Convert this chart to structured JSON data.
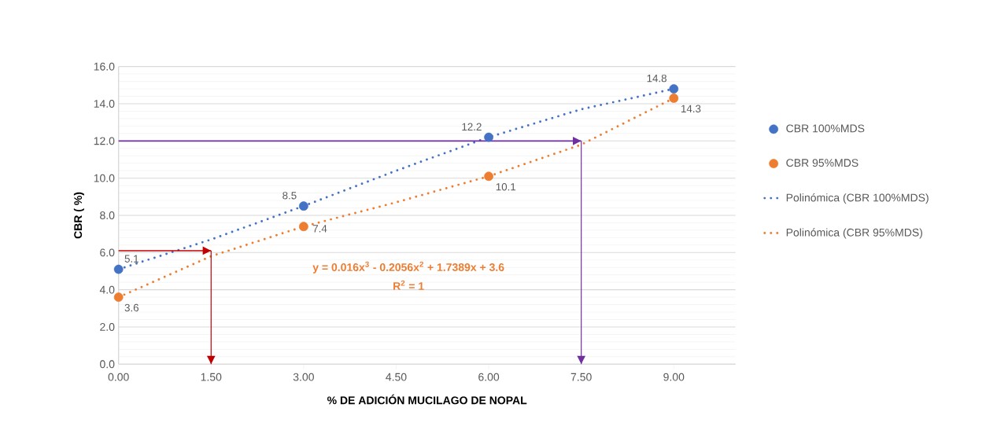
{
  "chart_data": {
    "type": "scatter",
    "xlabel": "% DE ADICIÓN MUCILAGO DE NOPAL",
    "ylabel": "CBR ( %)",
    "x": [
      0,
      3,
      6,
      9
    ],
    "series": [
      {
        "name": "CBR 100%MDS",
        "marker": "circle",
        "color": "#4472c4",
        "values": [
          5.1,
          8.5,
          12.2,
          14.8
        ],
        "value_labels": [
          "5.1",
          "8.5",
          "12.2",
          "14.8"
        ]
      },
      {
        "name": "CBR 95%MDS",
        "marker": "circle",
        "color": "#ed7d31",
        "values": [
          3.6,
          7.4,
          10.1,
          14.3
        ],
        "value_labels": [
          "3.6",
          "7.4",
          "10.1",
          "14.3"
        ]
      },
      {
        "name": "Polinómica (CBR 100%MDS)",
        "type": "line",
        "marker": "none",
        "color": "#4472c4",
        "x": [
          0,
          1.5,
          3,
          4.5,
          6,
          7.5,
          9
        ],
        "values": [
          5.1,
          6.7,
          8.5,
          10.4,
          12.2,
          13.7,
          14.8
        ]
      },
      {
        "name": "Polinómica (CBR 95%MDS)",
        "type": "line",
        "marker": "none",
        "color": "#ed7d31",
        "x": [
          0,
          1.5,
          3,
          4.5,
          6,
          7.5,
          9
        ],
        "values": [
          3.6,
          5.8,
          7.4,
          8.7,
          10.1,
          11.8,
          14.3
        ]
      }
    ],
    "annotations": [
      "y = 0.016x$^{3}$ - 0.2056x$^{2}$ + 1.7389x + 3.6",
      "R$^{2}$ = 1"
    ],
    "ref_lines": [
      {
        "axis": "y",
        "value": 6.1,
        "color": "#c00000"
      },
      {
        "axis": "x",
        "value": 1.5,
        "color": "#c00000"
      },
      {
        "axis": "y",
        "value": 12.0,
        "color": "#7030a0"
      },
      {
        "axis": "x",
        "value": 7.5,
        "color": "#7030a0"
      }
    ],
    "xlim": [
      0,
      10
    ],
    "ylim": [
      0,
      16
    ],
    "xticks": [
      {
        "value": 0,
        "label": "0.00"
      },
      {
        "value": 1.5,
        "label": "1.50"
      },
      {
        "value": 3,
        "label": "3.00"
      },
      {
        "value": 4.5,
        "label": "4.50"
      },
      {
        "value": 6,
        "label": "6.00"
      },
      {
        "value": 7.5,
        "label": "7.50"
      },
      {
        "value": 9,
        "label": "9.00"
      }
    ],
    "yticks": [
      {
        "value": 0,
        "label": "0.0"
      },
      {
        "value": 2,
        "label": "2.0"
      },
      {
        "value": 4,
        "label": "4.0"
      },
      {
        "value": 6,
        "label": "6.0"
      },
      {
        "value": 8,
        "label": "8.0"
      },
      {
        "value": 10,
        "label": "10.0"
      },
      {
        "value": 12,
        "label": "12.0"
      },
      {
        "value": 14,
        "label": "14.0"
      },
      {
        "value": 16,
        "label": "16.0"
      }
    ],
    "grid": "y",
    "legend": "right",
    "line_style": "dotted"
  }
}
